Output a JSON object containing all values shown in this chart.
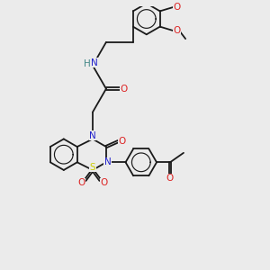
{
  "bg_color": "#ebebeb",
  "bond_color": "#1a1a1a",
  "bond_width": 1.3,
  "atom_colors": {
    "N": "#2222cc",
    "O": "#dd2222",
    "S": "#cccc00",
    "H": "#448888",
    "C": "#1a1a1a"
  },
  "fontsize": 7.5,
  "figsize": [
    3.0,
    3.0
  ],
  "dpi": 100
}
